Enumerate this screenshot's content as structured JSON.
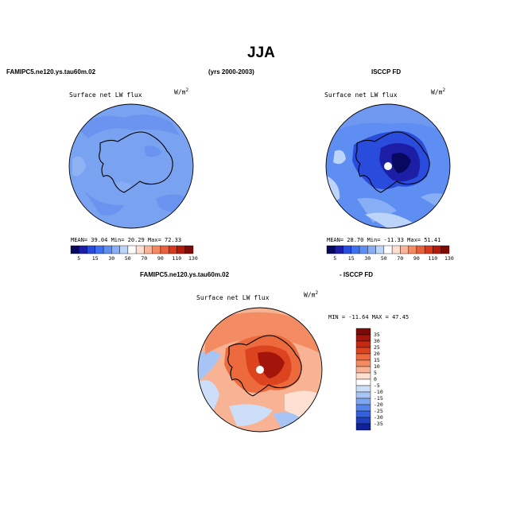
{
  "title": "JJA",
  "header_left": "FAMIPC5.ne120.ys.tau60m.02",
  "header_center": "(yrs 2000-2003)",
  "header_right": "ISCCP FD",
  "diff_title_left": "FAMIPC5.ne120.ys.tau60m.02",
  "diff_title_right": "- ISCCP FD",
  "panels": {
    "model": {
      "label": "Surface net LW flux",
      "units": "W/m",
      "units_exp": "2",
      "stats": "MEAN=   39.04   Min=   20.29   Max=   72.33"
    },
    "obs": {
      "label": "Surface net LW flux",
      "units": "W/m",
      "units_exp": "2",
      "stats": "MEAN=   28.70   Min= -11.33   Max=   51.41"
    },
    "diff": {
      "label": "Surface net LW flux",
      "units": "W/m",
      "units_exp": "2",
      "stats": "MIN = -11.64  MAX =   47.45"
    }
  },
  "colorbar_main": {
    "labels": [
      "5",
      "15",
      "30",
      "50",
      "70",
      "90",
      "110",
      "130"
    ],
    "colors": [
      "#08085e",
      "#1c1ea6",
      "#2a4cdc",
      "#3f70ee",
      "#5f8ef2",
      "#88aef6",
      "#bcd4fa",
      "#ffffff",
      "#fde0d2",
      "#f8b79c",
      "#f28a63",
      "#e8613a",
      "#d8391c",
      "#b41a0c",
      "#7c0a06"
    ]
  },
  "colorbar_diff": {
    "labels": [
      "35",
      "30",
      "25",
      "20",
      "15",
      "10",
      "5",
      "0",
      "-5",
      "-10",
      "-15",
      "-20",
      "-25",
      "-30",
      "-35"
    ],
    "colors": [
      "#7c0a06",
      "#a3140a",
      "#c42a12",
      "#dc4420",
      "#ec6a3c",
      "#f38c62",
      "#f8b394",
      "#fde0d2",
      "#ffffff",
      "#cddff8",
      "#a7c4f5",
      "#7ea6f0",
      "#5585ea",
      "#3462dc",
      "#1f3fbd",
      "#0e2196"
    ]
  }
}
